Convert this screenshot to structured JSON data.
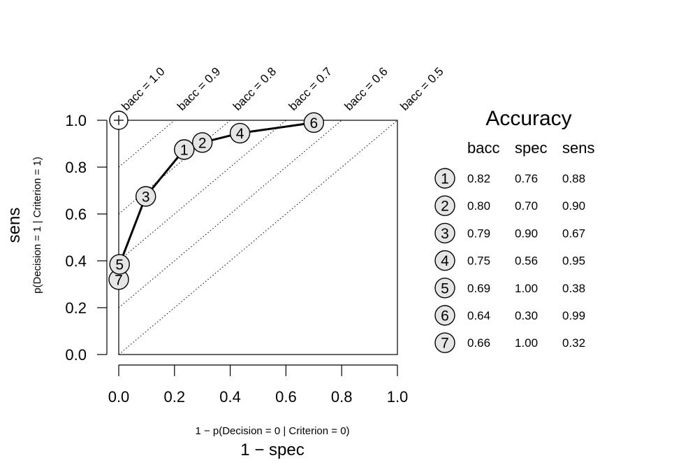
{
  "chart_data": {
    "type": "scatter",
    "xlabel": "1 − spec",
    "xlabel_sub": "1 − p(Decision = 0 | Criterion = 0)",
    "ylabel": "sens",
    "ylabel_sub": "p(Decision = 1 | Criterion = 1)",
    "xlim": [
      0,
      1
    ],
    "ylim": [
      0,
      1
    ],
    "x_ticks": [
      "0.0",
      "0.2",
      "0.4",
      "0.6",
      "0.8",
      "1.0"
    ],
    "y_ticks": [
      "0.0",
      "0.2",
      "0.4",
      "0.6",
      "0.8",
      "1.0"
    ],
    "iso_lines": [
      {
        "label": "bacc = 1.0",
        "value": 1.0
      },
      {
        "label": "bacc = 0.9",
        "value": 0.9
      },
      {
        "label": "bacc = 0.8",
        "value": 0.8
      },
      {
        "label": "bacc = 0.7",
        "value": 0.7
      },
      {
        "label": "bacc = 0.6",
        "value": 0.6
      },
      {
        "label": "bacc = 0.5",
        "value": 0.5
      }
    ],
    "points": [
      {
        "id": "1",
        "bacc": "0.82",
        "spec": "0.76",
        "sens": "0.88",
        "x": 0.235,
        "y": 0.875
      },
      {
        "id": "2",
        "bacc": "0.80",
        "spec": "0.70",
        "sens": "0.90",
        "x": 0.3,
        "y": 0.905
      },
      {
        "id": "3",
        "bacc": "0.79",
        "spec": "0.90",
        "sens": "0.67",
        "x": 0.097,
        "y": 0.675
      },
      {
        "id": "4",
        "bacc": "0.75",
        "spec": "0.56",
        "sens": "0.95",
        "x": 0.435,
        "y": 0.945
      },
      {
        "id": "5",
        "bacc": "0.69",
        "spec": "1.00",
        "sens": "0.38",
        "x": 0.003,
        "y": 0.385
      },
      {
        "id": "6",
        "bacc": "0.64",
        "spec": "0.30",
        "sens": "0.99",
        "x": 0.7,
        "y": 0.99
      },
      {
        "id": "7",
        "bacc": "0.66",
        "spec": "1.00",
        "sens": "0.32",
        "x": 0.0,
        "y": 0.32
      }
    ],
    "curve_order": [
      "7",
      "5",
      "3",
      "1",
      "2",
      "4",
      "6"
    ],
    "ideal_point": {
      "x": 0,
      "y": 1
    },
    "table": {
      "title": "Accuracy",
      "columns": [
        "bacc",
        "spec",
        "sens"
      ]
    }
  }
}
